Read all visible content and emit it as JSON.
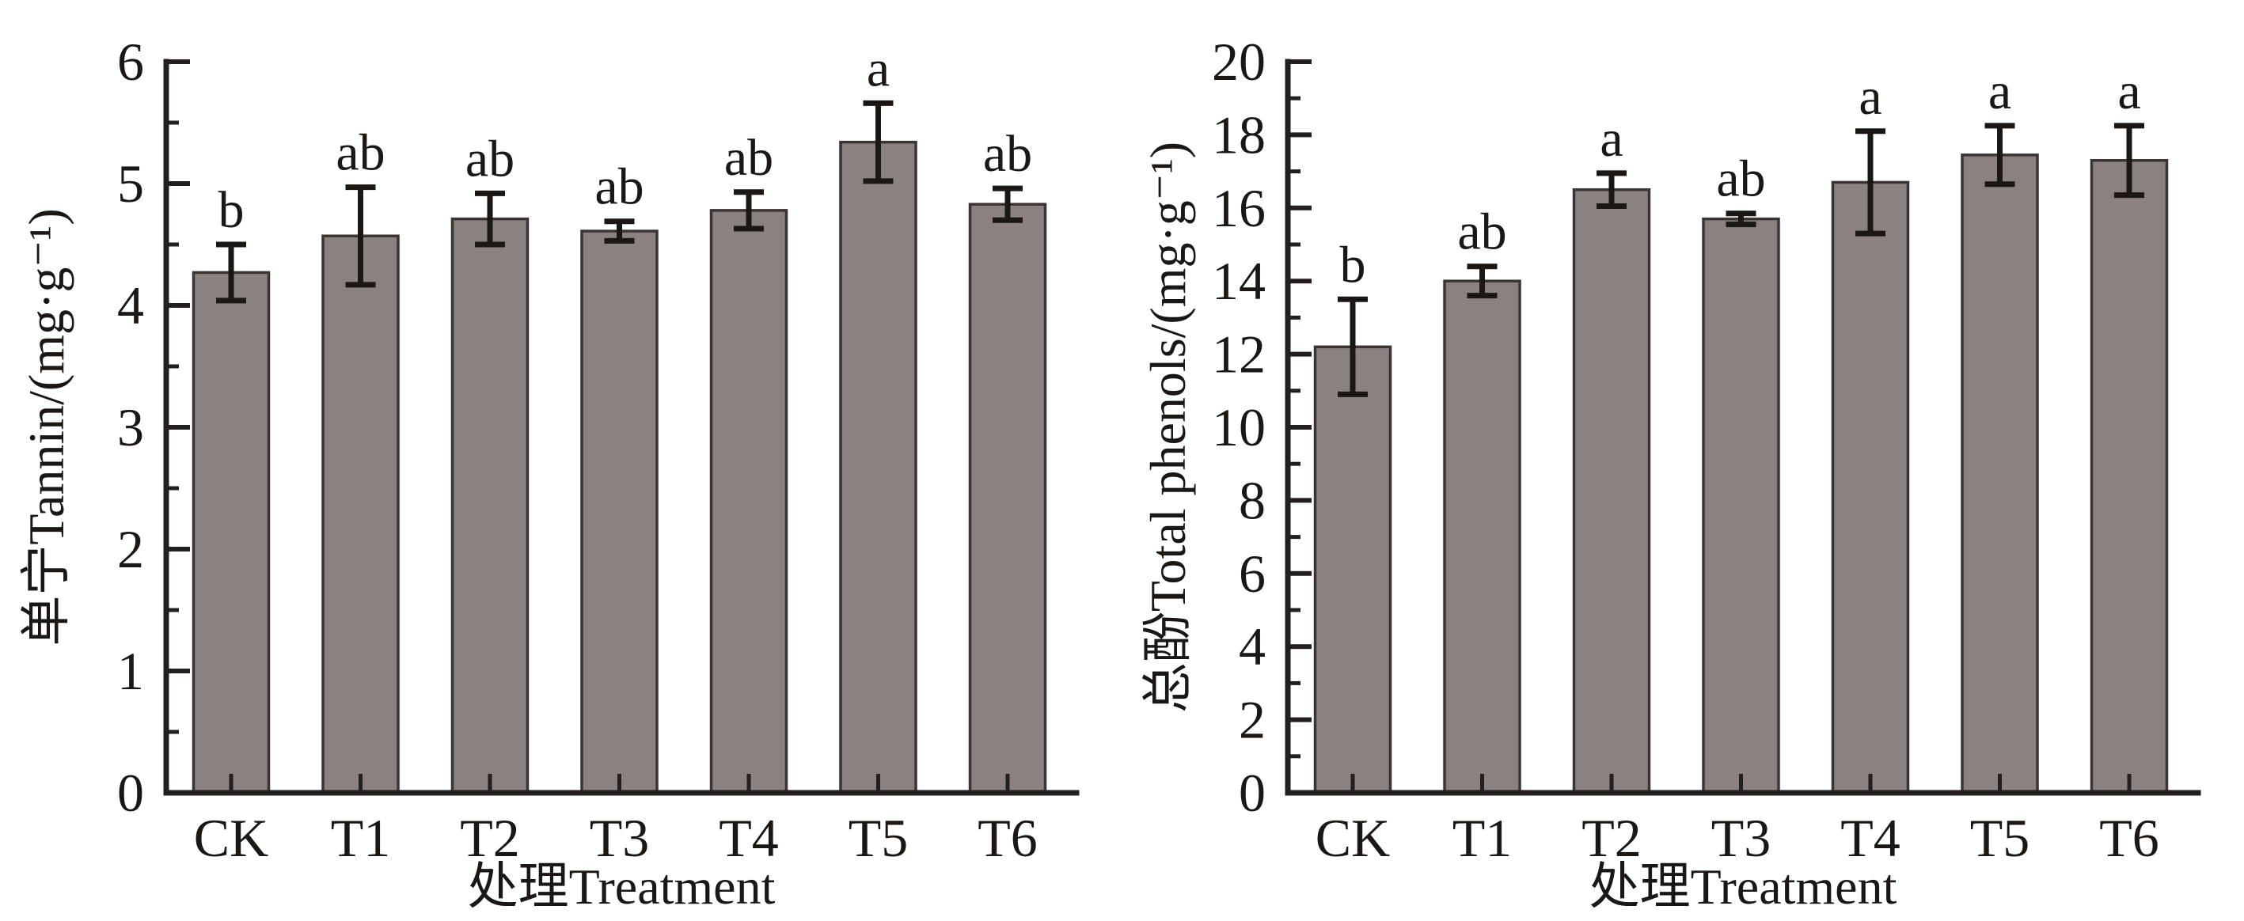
{
  "figure": {
    "background": "#ffffff",
    "description_texts": {
      "left_ylabel": "单宁Tannin/(mg·g⁻¹)",
      "right_ylabel": "总酚Total phenols/(mg·g⁻¹)",
      "xlabel": "处理Treatment"
    }
  },
  "style": {
    "bar_fill": "#8a8180",
    "bar_stroke": "#3a3433",
    "axis_color": "#231f1e",
    "error_color": "#1b1715",
    "text_color": "#1a1715"
  },
  "chart_data": [
    {
      "type": "bar",
      "title": "",
      "ylabel": "单宁Tannin/(mg·g⁻¹)",
      "xlabel": "处理Treatment",
      "categories": [
        "CK",
        "T1",
        "T2",
        "T3",
        "T4",
        "T5",
        "T6"
      ],
      "values": [
        4.27,
        4.57,
        4.71,
        4.61,
        4.78,
        5.34,
        4.83
      ],
      "errors": [
        0.23,
        0.4,
        0.21,
        0.08,
        0.15,
        0.32,
        0.13
      ],
      "sig_letters": [
        "b",
        "ab",
        "ab",
        "ab",
        "ab",
        "a",
        "ab"
      ],
      "ylim": [
        0,
        6
      ],
      "ytick_step": 1,
      "yminor_step": 0.5,
      "grid": false,
      "legend": "none"
    },
    {
      "type": "bar",
      "title": "",
      "ylabel": "总酚Total phenols/(mg·g⁻¹)",
      "xlabel": "处理Treatment",
      "categories": [
        "CK",
        "T1",
        "T2",
        "T3",
        "T4",
        "T5",
        "T6"
      ],
      "values": [
        12.2,
        14.0,
        16.5,
        15.7,
        16.7,
        17.45,
        17.3
      ],
      "errors": [
        1.3,
        0.4,
        0.45,
        0.15,
        1.4,
        0.8,
        0.95
      ],
      "sig_letters": [
        "b",
        "ab",
        "a",
        "ab",
        "a",
        "a",
        "a"
      ],
      "ylim": [
        0,
        20
      ],
      "ytick_step": 2,
      "yminor_step": 1,
      "grid": false,
      "legend": "none"
    }
  ]
}
